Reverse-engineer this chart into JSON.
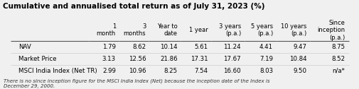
{
  "title": "Cumulative and annualised total return as of July 31, 2023 (%)",
  "col_headers": [
    "1\nmonth",
    "3\nmonths",
    "Year to\ndate",
    "1 year",
    "3 years\n(p.a.)",
    "5 years\n(p.a.)",
    "10 years\n(p.a.)",
    "Since\ninception\n(p.a.)"
  ],
  "row_labels": [
    "NAV",
    "Market Price",
    "MSCI India Index (Net TR)"
  ],
  "data": [
    [
      1.79,
      8.62,
      10.14,
      5.61,
      11.24,
      4.41,
      9.47,
      8.75
    ],
    [
      3.13,
      12.56,
      21.86,
      17.31,
      17.67,
      7.19,
      10.84,
      8.52
    ],
    [
      2.99,
      10.96,
      8.25,
      7.54,
      16.6,
      8.03,
      9.5,
      "n/a*"
    ]
  ],
  "footnote": "There is no since inception figure for the MSCI India Index (Net) because the inception date of the Index is\nDecember 29, 2000.",
  "bg_color": "#f0f0f0",
  "header_bg": "#d9d9d9",
  "row_colors": [
    "#ffffff",
    "#e8e8e8",
    "#ffffff"
  ],
  "title_color": "#000000",
  "text_color": "#000000"
}
